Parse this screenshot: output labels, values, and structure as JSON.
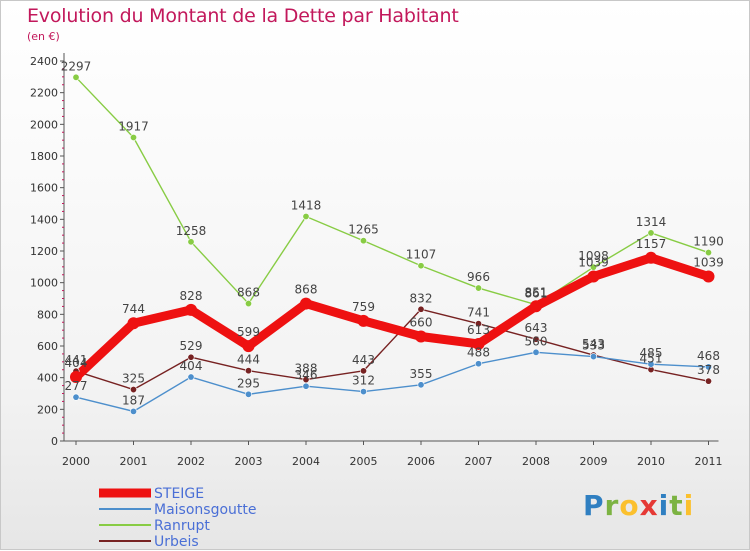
{
  "title": "Evolution du Montant de la Dette par Habitant",
  "subtitle": "(en €)",
  "brand": {
    "letters": [
      {
        "ch": "P",
        "color": "#2f7fc1"
      },
      {
        "ch": "r",
        "color": "#7cb342"
      },
      {
        "ch": "o",
        "color": "#fbc02d"
      },
      {
        "ch": "x",
        "color": "#e53935"
      },
      {
        "ch": "i",
        "color": "#2f7fc1"
      },
      {
        "ch": "t",
        "color": "#7cb342"
      },
      {
        "ch": "i",
        "color": "#fbc02d"
      }
    ]
  },
  "chart_data": {
    "type": "line",
    "title": "Evolution du Montant de la Dette par Habitant",
    "subtitle": "(en €)",
    "xlabel": "",
    "ylabel": "",
    "x": [
      "2000",
      "2001",
      "2002",
      "2003",
      "2004",
      "2005",
      "2006",
      "2007",
      "2008",
      "2009",
      "2010",
      "2011"
    ],
    "ylim": [
      0,
      2400
    ],
    "yticks": [
      "0",
      "200",
      "400",
      "600",
      "800",
      "1000",
      "1200",
      "1400",
      "1600",
      "1800",
      "2000",
      "2200",
      "2400"
    ],
    "grid": false,
    "legend_position": "bottom-left",
    "series": [
      {
        "name": "STEIGE",
        "color": "#ee1111",
        "values": [
          404,
          744,
          828,
          599,
          868,
          759,
          660,
          613,
          851,
          1039,
          1157,
          1039
        ]
      },
      {
        "name": "Maisonsgoutte",
        "color": "#4d8fcc",
        "values": [
          277,
          187,
          404,
          295,
          346,
          312,
          355,
          488,
          560,
          533,
          485,
          468
        ]
      },
      {
        "name": "Ranrupt",
        "color": "#88cc44",
        "values": [
          2297,
          1917,
          1258,
          868,
          1418,
          1265,
          1107,
          966,
          861,
          1098,
          1314,
          1190
        ]
      },
      {
        "name": "Urbeis",
        "color": "#772222",
        "values": [
          441,
          325,
          529,
          444,
          388,
          443,
          832,
          741,
          643,
          543,
          451,
          378
        ]
      }
    ]
  }
}
